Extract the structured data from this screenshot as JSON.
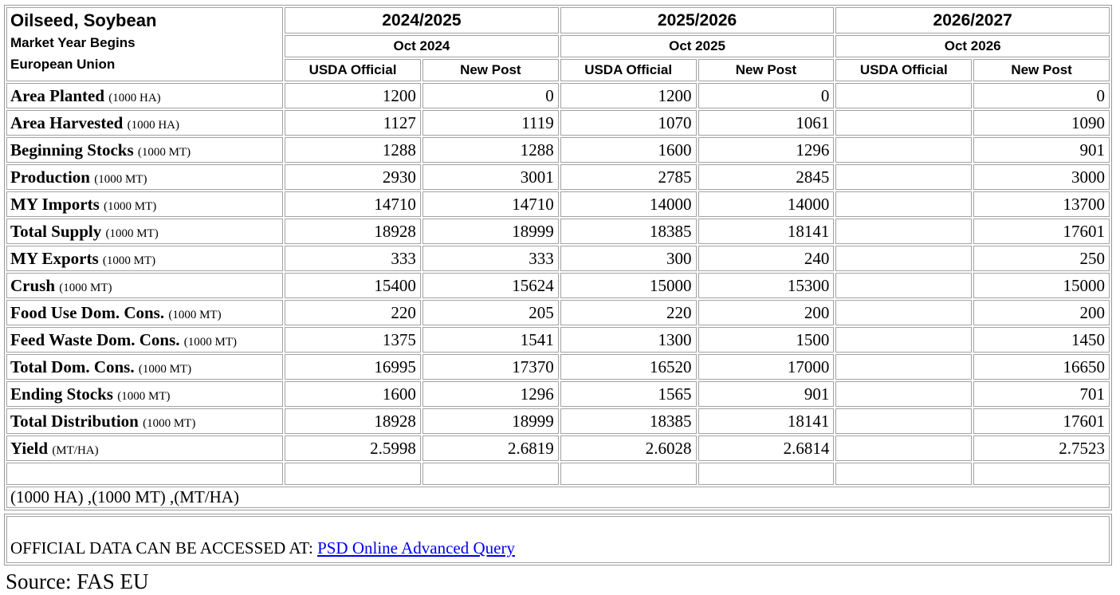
{
  "colors": {
    "link": "#0000ee",
    "border": "#9d9d9d"
  },
  "table": {
    "title_lines": [
      "Oilseed, Soybean",
      "Market Year Begins",
      "European Union"
    ],
    "year_groups": [
      {
        "year": "2024/2025",
        "begin": "Oct 2024"
      },
      {
        "year": "2025/2026",
        "begin": "Oct 2025"
      },
      {
        "year": "2026/2027",
        "begin": "Oct 2026"
      }
    ],
    "series_headers": [
      "USDA Official",
      "New Post"
    ],
    "rows": [
      {
        "label": "Area Planted",
        "unit": "(1000 HA)",
        "values": [
          "1200",
          "0",
          "1200",
          "0",
          "",
          "0"
        ]
      },
      {
        "label": "Area Harvested",
        "unit": "(1000 HA)",
        "values": [
          "1127",
          "1119",
          "1070",
          "1061",
          "",
          "1090"
        ]
      },
      {
        "label": "Beginning Stocks",
        "unit": "(1000 MT)",
        "values": [
          "1288",
          "1288",
          "1600",
          "1296",
          "",
          "901"
        ]
      },
      {
        "label": "Production",
        "unit": "(1000 MT)",
        "values": [
          "2930",
          "3001",
          "2785",
          "2845",
          "",
          "3000"
        ]
      },
      {
        "label": "MY Imports",
        "unit": "(1000 MT)",
        "values": [
          "14710",
          "14710",
          "14000",
          "14000",
          "",
          "13700"
        ]
      },
      {
        "label": "Total Supply",
        "unit": "(1000 MT)",
        "values": [
          "18928",
          "18999",
          "18385",
          "18141",
          "",
          "17601"
        ]
      },
      {
        "label": "MY Exports",
        "unit": "(1000 MT)",
        "values": [
          "333",
          "333",
          "300",
          "240",
          "",
          "250"
        ]
      },
      {
        "label": "Crush",
        "unit": "(1000 MT)",
        "values": [
          "15400",
          "15624",
          "15000",
          "15300",
          "",
          "15000"
        ]
      },
      {
        "label": "Food Use Dom. Cons.",
        "unit": "(1000 MT)",
        "values": [
          "220",
          "205",
          "220",
          "200",
          "",
          "200"
        ]
      },
      {
        "label": "Feed Waste Dom. Cons.",
        "unit": "(1000 MT)",
        "values": [
          "1375",
          "1541",
          "1300",
          "1500",
          "",
          "1450"
        ]
      },
      {
        "label": "Total Dom. Cons.",
        "unit": "(1000 MT)",
        "values": [
          "16995",
          "17370",
          "16520",
          "17000",
          "",
          "16650"
        ]
      },
      {
        "label": "Ending Stocks",
        "unit": "(1000 MT)",
        "values": [
          "1600",
          "1296",
          "1565",
          "901",
          "",
          "701"
        ]
      },
      {
        "label": "Total Distribution",
        "unit": "(1000 MT)",
        "values": [
          "18928",
          "18999",
          "18385",
          "18141",
          "",
          "17601"
        ]
      },
      {
        "label": "Yield",
        "unit": "(MT/HA)",
        "values": [
          "2.5998",
          "2.6819",
          "2.6028",
          "2.6814",
          "",
          "2.7523"
        ]
      }
    ],
    "units_note": "(1000 HA) ,(1000 MT) ,(MT/HA)",
    "official_note": {
      "text": "OFFICIAL DATA CAN BE ACCESSED AT: ",
      "link_label": "PSD Online Advanced Query"
    }
  },
  "footer": {
    "source": "Source: FAS EU"
  }
}
